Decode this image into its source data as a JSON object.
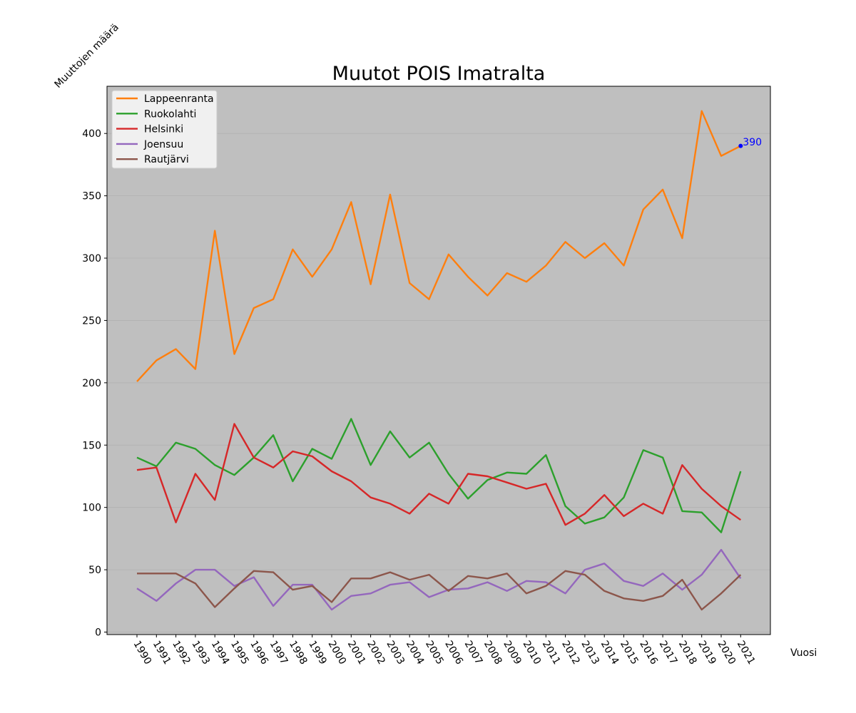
{
  "chart_data": {
    "type": "line",
    "title": "Muutot POIS Imatralta",
    "xlabel": "Vuosi",
    "ylabel": "Muuttojen määrä",
    "x": [
      "1990",
      "1991",
      "1992",
      "1993",
      "1994",
      "1995",
      "1996",
      "1997",
      "1998",
      "1999",
      "2000",
      "2001",
      "2002",
      "2003",
      "2004",
      "2005",
      "2006",
      "2007",
      "2008",
      "2009",
      "2010",
      "2011",
      "2012",
      "2013",
      "2014",
      "2015",
      "2016",
      "2017",
      "2018",
      "2019",
      "2020",
      "2021"
    ],
    "ylim": [
      0,
      440
    ],
    "yticks": [
      0,
      50,
      100,
      150,
      200,
      250,
      300,
      350,
      400
    ],
    "grid": "horizontal",
    "legend_position": "upper-left",
    "background": "#bfbfbf",
    "series": [
      {
        "name": "Lappeenranta",
        "color": "#ff7f0e",
        "values": [
          201,
          218,
          227,
          211,
          322,
          223,
          260,
          267,
          307,
          285,
          307,
          345,
          279,
          351,
          280,
          267,
          303,
          285,
          270,
          288,
          281,
          294,
          313,
          300,
          312,
          294,
          339,
          355,
          316,
          418,
          382,
          390
        ]
      },
      {
        "name": "Ruokolahti",
        "color": "#2ca02c",
        "values": [
          140,
          133,
          152,
          147,
          134,
          126,
          140,
          158,
          121,
          147,
          139,
          171,
          134,
          161,
          140,
          152,
          127,
          107,
          122,
          128,
          127,
          142,
          101,
          87,
          92,
          108,
          146,
          140,
          97,
          96,
          80,
          129
        ]
      },
      {
        "name": "Helsinki",
        "color": "#d62728",
        "values": [
          130,
          132,
          88,
          127,
          106,
          167,
          140,
          132,
          145,
          141,
          129,
          121,
          108,
          103,
          95,
          111,
          103,
          127,
          125,
          120,
          115,
          119,
          86,
          95,
          110,
          93,
          103,
          95,
          134,
          115,
          101,
          90
        ]
      },
      {
        "name": "Joensuu",
        "color": "#9467bd",
        "values": [
          35,
          25,
          39,
          50,
          50,
          37,
          44,
          21,
          38,
          38,
          18,
          29,
          31,
          38,
          40,
          28,
          34,
          35,
          40,
          33,
          41,
          40,
          31,
          50,
          55,
          41,
          37,
          47,
          34,
          46,
          66,
          43
        ]
      },
      {
        "name": "Rautjärvi",
        "color": "#8c564b",
        "values": [
          47,
          47,
          47,
          39,
          20,
          35,
          49,
          48,
          34,
          37,
          24,
          43,
          43,
          48,
          42,
          46,
          33,
          45,
          43,
          47,
          31,
          37,
          49,
          46,
          33,
          27,
          25,
          29,
          42,
          18,
          31,
          46
        ]
      }
    ],
    "annotation": {
      "x": "2021",
      "y": 390,
      "label": "390",
      "color": "#0000ff"
    }
  }
}
